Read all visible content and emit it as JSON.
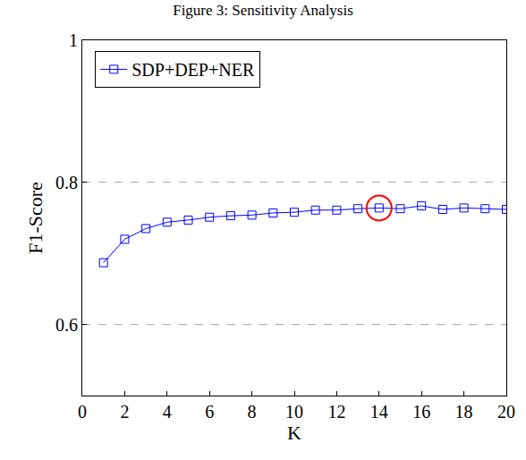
{
  "chart_data": {
    "type": "line",
    "title": "Figure 3: Sensitivity Analysis",
    "x_label": "K",
    "y_label": "F1-Score",
    "x": [
      1,
      2,
      3,
      4,
      5,
      6,
      7,
      8,
      9,
      10,
      11,
      12,
      13,
      14,
      15,
      16,
      17,
      18,
      19,
      20
    ],
    "series": [
      {
        "name": "SDP+DEP+NER",
        "color": "#0000ff",
        "marker": "square",
        "line_style": "solid",
        "values": [
          0.687,
          0.72,
          0.735,
          0.744,
          0.747,
          0.751,
          0.753,
          0.754,
          0.757,
          0.758,
          0.761,
          0.761,
          0.763,
          0.764,
          0.763,
          0.767,
          0.762,
          0.764,
          0.763,
          0.762
        ]
      }
    ],
    "xlim": [
      0,
      20
    ],
    "xticks": [
      0,
      2,
      4,
      6,
      8,
      10,
      12,
      14,
      16,
      18,
      20
    ],
    "ylim": [
      0.5,
      1
    ],
    "yticks": [
      0.6,
      0.8,
      1
    ],
    "grid": true,
    "legend": "top-left"
  }
}
